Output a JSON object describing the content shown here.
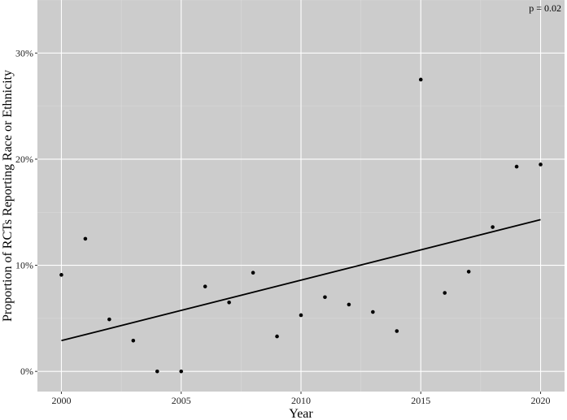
{
  "chart_data": {
    "type": "scatter",
    "title": "",
    "xlabel": "Year",
    "ylabel": "Proportion of RCTs Reporting Race or Ethnicity",
    "annotation": "p = 0.02",
    "xlim": [
      1999.0,
      2021.0
    ],
    "ylim": [
      -1.9,
      35.0
    ],
    "x_ticks": [
      2000,
      2005,
      2010,
      2015,
      2020
    ],
    "x_tick_labels": [
      "2000",
      "2005",
      "2010",
      "2015",
      "2020"
    ],
    "y_ticks": [
      0,
      10,
      20,
      30
    ],
    "y_tick_labels": [
      "0%",
      "10%",
      "20%",
      "30%"
    ],
    "grid": true,
    "panel_background": "#cccccc",
    "point_color": "#000000",
    "series": [
      {
        "x": [
          2000,
          2001,
          2002,
          2003,
          2004,
          2005,
          2006,
          2007,
          2008,
          2009,
          2010,
          2011,
          2012,
          2013,
          2014,
          2015,
          2016,
          2017,
          2018,
          2019,
          2020
        ],
        "y": [
          9.1,
          12.5,
          4.9,
          2.9,
          0.0,
          0.0,
          8.0,
          6.5,
          9.3,
          3.3,
          5.3,
          7.0,
          6.3,
          5.6,
          3.8,
          27.5,
          7.4,
          9.4,
          13.6,
          19.3,
          19.5
        ]
      }
    ],
    "trend_line": {
      "x": [
        2000,
        2020
      ],
      "y": [
        2.9,
        14.3
      ],
      "color": "#000000"
    }
  }
}
